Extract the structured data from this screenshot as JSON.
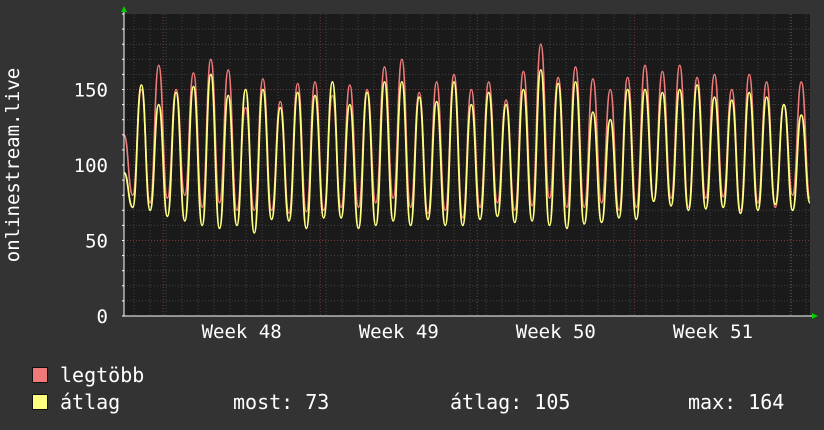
{
  "chart_data": {
    "type": "line",
    "ylabel": "onlinestream.live",
    "ylim": [
      0,
      200
    ],
    "yticks": [
      0,
      50,
      100,
      150
    ],
    "xticks": [
      "Week 48",
      "Week 49",
      "Week 50",
      "Week 51"
    ],
    "grid": true,
    "legend_placement": "bottom-left",
    "series": [
      {
        "name": "legtöbb",
        "color": "#f07a7a",
        "values": [
          120,
          80,
          150,
          75,
          166,
          78,
          150,
          80,
          161,
          72,
          170,
          75,
          163,
          70,
          138,
          70,
          157,
          70,
          142,
          68,
          154,
          69,
          155,
          70,
          146,
          72,
          153,
          72,
          150,
          75,
          165,
          78,
          170,
          72,
          148,
          68,
          155,
          70,
          160,
          65,
          150,
          72,
          155,
          75,
          143,
          70,
          162,
          73,
          180,
          78,
          158,
          72,
          165,
          72,
          157,
          75,
          150,
          70,
          158,
          72,
          166,
          76,
          162,
          78,
          166,
          72,
          158,
          78,
          160,
          79,
          150,
          70,
          160,
          75,
          155,
          72,
          140,
          80,
          155,
          78
        ]
      },
      {
        "name": "átlag",
        "color": "#ffff80",
        "values": [
          95,
          72,
          153,
          70,
          140,
          66,
          148,
          63,
          152,
          60,
          160,
          58,
          146,
          60,
          150,
          55,
          150,
          64,
          138,
          63,
          148,
          58,
          146,
          65,
          155,
          65,
          140,
          58,
          148,
          60,
          155,
          63,
          155,
          60,
          145,
          64,
          142,
          60,
          155,
          60,
          140,
          64,
          148,
          66,
          140,
          62,
          150,
          63,
          163,
          60,
          154,
          58,
          155,
          61,
          135,
          62,
          130,
          65,
          150,
          64,
          150,
          76,
          148,
          73,
          150,
          70,
          153,
          71,
          145,
          72,
          143,
          68,
          148,
          70,
          145,
          74,
          140,
          70,
          133,
          75
        ]
      }
    ],
    "legend": [
      {
        "label": "legtöbb",
        "color": "#f07a7a"
      },
      {
        "label": "átlag",
        "color": "#ffff80"
      }
    ],
    "stats": {
      "now": "most: 73",
      "avg": "átlag: 105",
      "max": "max: 164"
    }
  }
}
